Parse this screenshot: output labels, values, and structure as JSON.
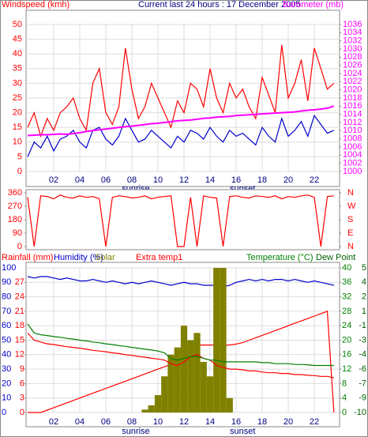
{
  "chart_data": [
    {
      "type": "line",
      "title": "Current last 24 hours : 17 December 2005",
      "y_label": "Windspeed (kmh)",
      "y2_label": "Barometer (mb)",
      "x": [
        0,
        0.5,
        1,
        1.5,
        2,
        2.5,
        3,
        3.5,
        4,
        4.5,
        5,
        5.5,
        6,
        6.5,
        7,
        7.5,
        8,
        8.5,
        9,
        9.5,
        10,
        10.5,
        11,
        11.5,
        12,
        12.5,
        13,
        13.5,
        14,
        14.5,
        15,
        15.5,
        16,
        16.5,
        17,
        17.5,
        18,
        18.5,
        19,
        19.5,
        20,
        20.5,
        21,
        21.5,
        22,
        22.5,
        23,
        23.5
      ],
      "xlim": [
        0,
        24
      ],
      "xticks": [
        {
          "value": 2,
          "label": "02"
        },
        {
          "value": 4,
          "label": "04"
        },
        {
          "value": 6,
          "label": "06"
        },
        {
          "value": 8,
          "label": "08"
        },
        10,
        12,
        14,
        16,
        18,
        20,
        22
      ],
      "annotations": [
        {
          "x": 8.3,
          "text": "sunrise"
        },
        {
          "x": 16.5,
          "text": "sunset"
        }
      ],
      "ylim": [
        0,
        50
      ],
      "yticks": [
        0,
        5,
        10,
        15,
        20,
        25,
        30,
        35,
        40,
        45,
        50
      ],
      "y2lim": [
        1000,
        1036
      ],
      "y2ticks": [
        1000,
        1002,
        1004,
        1006,
        1008,
        1010,
        1012,
        1014,
        1016,
        1018,
        1020,
        1022,
        1024,
        1026,
        1028,
        1030,
        1032,
        1034,
        1036
      ],
      "grid": true,
      "series": [
        {
          "color": "#ff0000",
          "values": [
            15,
            20,
            12,
            18,
            14,
            20,
            22,
            25,
            18,
            14,
            30,
            35,
            20,
            16,
            22,
            42,
            28,
            18,
            22,
            30,
            25,
            20,
            15,
            24,
            20,
            30,
            28,
            22,
            35,
            25,
            20,
            30,
            25,
            28,
            22,
            18,
            32,
            26,
            20,
            43,
            25,
            30,
            38,
            24,
            42,
            35,
            28,
            30
          ]
        },
        {
          "color": "#0000cc",
          "values": [
            5,
            10,
            8,
            12,
            7,
            11,
            12,
            14,
            10,
            8,
            14,
            15,
            11,
            9,
            12,
            18,
            14,
            10,
            11,
            14,
            12,
            10,
            8,
            12,
            10,
            14,
            13,
            11,
            15,
            12,
            10,
            14,
            12,
            13,
            11,
            9,
            15,
            12,
            10,
            18,
            12,
            14,
            17,
            12,
            19,
            16,
            13,
            14
          ]
        },
        {
          "color": "#ff00ff",
          "axis": "y2",
          "values": [
            1008.8,
            1008.9,
            1009,
            1009,
            1009.1,
            1009.2,
            1009.1,
            1009.3,
            1009.5,
            1009.8,
            1010,
            1010.2,
            1010.4,
            1010.6,
            1010.8,
            1011,
            1011.1,
            1011.3,
            1011.5,
            1011.7,
            1011.8,
            1012,
            1012.2,
            1012.4,
            1012.5,
            1012.6,
            1012.8,
            1013,
            1013.1,
            1013.3,
            1013.4,
            1013.5,
            1013.7,
            1013.8,
            1013.9,
            1014,
            1014.1,
            1014.2,
            1014.3,
            1014.4,
            1014.5,
            1014.6,
            1014.8,
            1015,
            1015.1,
            1015.3,
            1015.5,
            1016
          ]
        }
      ]
    },
    {
      "type": "line",
      "x": [
        0,
        0.5,
        1,
        1.5,
        2,
        2.5,
        3,
        3.5,
        4,
        4.5,
        5,
        5.5,
        6,
        6.5,
        7,
        7.5,
        8,
        8.5,
        9,
        9.5,
        10,
        10.5,
        11,
        11.5,
        12,
        12.5,
        13,
        13.5,
        14,
        14.5,
        15,
        15.5,
        16,
        16.5,
        17,
        17.5,
        18,
        18.5,
        19,
        19.5,
        20,
        20.5,
        21,
        21.5,
        22,
        22.5,
        23,
        23.5
      ],
      "xlim": [
        0,
        24
      ],
      "ylim": [
        0,
        360
      ],
      "yticks": [
        0,
        90,
        180,
        270,
        360
      ],
      "y2lim": [
        0,
        360
      ],
      "y2ticks": [
        {
          "value": 360,
          "label": "N"
        },
        {
          "value": 270,
          "label": "W"
        },
        {
          "value": 180,
          "label": "S"
        },
        {
          "value": 90,
          "label": "E"
        },
        {
          "value": 0,
          "label": "N"
        }
      ],
      "series": [
        {
          "color": "#ff0000",
          "values": [
            330,
            0,
            340,
            335,
            320,
            345,
            330,
            325,
            340,
            330,
            335,
            320,
            0,
            330,
            340,
            335,
            325,
            330,
            340,
            320,
            330,
            335,
            340,
            0,
            0,
            330,
            0,
            340,
            330,
            325,
            0,
            335,
            340,
            330,
            325,
            340,
            335,
            330,
            340,
            320,
            335,
            330,
            340,
            345,
            330,
            0,
            335,
            340
          ]
        }
      ]
    },
    {
      "type": "line",
      "x": [
        0,
        0.5,
        1,
        1.5,
        2,
        2.5,
        3,
        3.5,
        4,
        4.5,
        5,
        5.5,
        6,
        6.5,
        7,
        7.5,
        8,
        8.5,
        9,
        9.5,
        10,
        10.5,
        11,
        11.5,
        12,
        12.5,
        13,
        13.5,
        14,
        14.5,
        15,
        15.5,
        16,
        16.5,
        17,
        17.5,
        18,
        18.5,
        19,
        19.5,
        20,
        20.5,
        21,
        21.5,
        22,
        22.5,
        23,
        23.5
      ],
      "xlim": [
        0,
        24
      ],
      "xticks": [
        {
          "value": 2,
          "label": "02"
        },
        {
          "value": 4,
          "label": "04"
        },
        {
          "value": 6,
          "label": "06"
        },
        {
          "value": 8,
          "label": "08"
        },
        10,
        12,
        14,
        16,
        18,
        20,
        22
      ],
      "annotations": [
        {
          "x": 8.3,
          "text": "sunrise"
        },
        {
          "x": 16.5,
          "text": "sunset"
        }
      ],
      "ylim": [
        0,
        100
      ],
      "yticks": [
        0,
        10,
        20,
        30,
        40,
        50,
        60,
        70,
        80,
        90,
        100
      ],
      "rain_lim": [
        0,
        30
      ],
      "rain_ticks": [
        0,
        3,
        6,
        9,
        12,
        15,
        18,
        21,
        24,
        27
      ],
      "y2lim": [
        0,
        40
      ],
      "y2ticks": [
        0,
        4,
        8,
        12,
        16,
        20,
        24,
        28,
        32,
        36,
        40
      ],
      "dew_lim": [
        -10,
        5
      ],
      "dew_ticks": [
        -10,
        {
          "value": -8.5,
          "label": "-9"
        },
        -7,
        {
          "value": -5.5,
          "label": "-6"
        },
        -4,
        {
          "value": -2.5,
          "label": "-3"
        },
        -1,
        {
          "value": 0.5,
          "label": "1"
        },
        2,
        {
          "value": 3.5,
          "label": "4"
        },
        5
      ],
      "dew_label": "Dew Point",
      "grid": true,
      "series": [
        {
          "name": "Rainfall (mm)",
          "color": "#ff0000",
          "axis": "rain",
          "values": [
            0,
            0,
            0,
            0.5,
            1,
            1.5,
            2,
            2.5,
            3,
            3.5,
            4,
            4.5,
            5,
            5.5,
            6,
            6.5,
            7,
            7.5,
            8,
            8.5,
            9,
            9.5,
            10,
            12,
            13.5,
            14,
            14,
            14,
            14,
            14,
            14,
            14,
            14.2,
            14.5,
            15,
            15.5,
            16,
            16.5,
            17,
            17.5,
            18,
            18.5,
            19,
            19.5,
            20,
            20.5,
            21,
            0
          ]
        },
        {
          "name": "Humidity (%)",
          "color": "#0000cc",
          "values": [
            94,
            93,
            94,
            94,
            93,
            92,
            93,
            92,
            91,
            91,
            92,
            91,
            90,
            91,
            90,
            89,
            90,
            89,
            90,
            91,
            90,
            89,
            88,
            89,
            90,
            89,
            89,
            88,
            88,
            88,
            87,
            88,
            90,
            91,
            92,
            91,
            92,
            91,
            92,
            92,
            91,
            92,
            91,
            90,
            91,
            90,
            89,
            88
          ]
        },
        {
          "name": "Solar",
          "color": "#808000",
          "style": "bar",
          "values": [
            0,
            0,
            0,
            0,
            0,
            0,
            0,
            0,
            0,
            0,
            0,
            0,
            0,
            0,
            0,
            0,
            0,
            0,
            2,
            5,
            12,
            25,
            40,
            45,
            60,
            50,
            55,
            35,
            25,
            100,
            100,
            10,
            0,
            0,
            0,
            0,
            0,
            0,
            0,
            0,
            0,
            0,
            0,
            0,
            0,
            0,
            0,
            0
          ]
        },
        {
          "name": "Extra temp1",
          "color": "#ff0000",
          "axis": "y2",
          "values": [
            22,
            20,
            19.5,
            19,
            18.8,
            18.5,
            18.2,
            18,
            17.8,
            17.5,
            17.2,
            17,
            16.8,
            16.5,
            16.3,
            16,
            15.8,
            15.5,
            15.3,
            15,
            14.8,
            14.5,
            13.5,
            13,
            14,
            15.5,
            16,
            15,
            14.5,
            13,
            12.5,
            12,
            12,
            11.8,
            11.5,
            11.5,
            11.2,
            11,
            11,
            10.8,
            10.8,
            10.5,
            10.5,
            10.3,
            10.2,
            10,
            10,
            9.6
          ]
        },
        {
          "name": "Temperature (°C)",
          "color": "#008000",
          "axis": "y2",
          "values": [
            24.5,
            22,
            21.5,
            21.3,
            21,
            20.8,
            20.5,
            20.3,
            20,
            19.8,
            19.5,
            19.3,
            19,
            18.8,
            18.5,
            18.3,
            18,
            17.8,
            17.5,
            17.3,
            17,
            16.5,
            15,
            14.5,
            15,
            15.5,
            15.5,
            15,
            14.5,
            14.5,
            14,
            14,
            14,
            14,
            14,
            14,
            13.8,
            13.8,
            13.5,
            13.5,
            13.5,
            13.3,
            13.3,
            13.2,
            13,
            13,
            13,
            13
          ]
        }
      ]
    }
  ]
}
